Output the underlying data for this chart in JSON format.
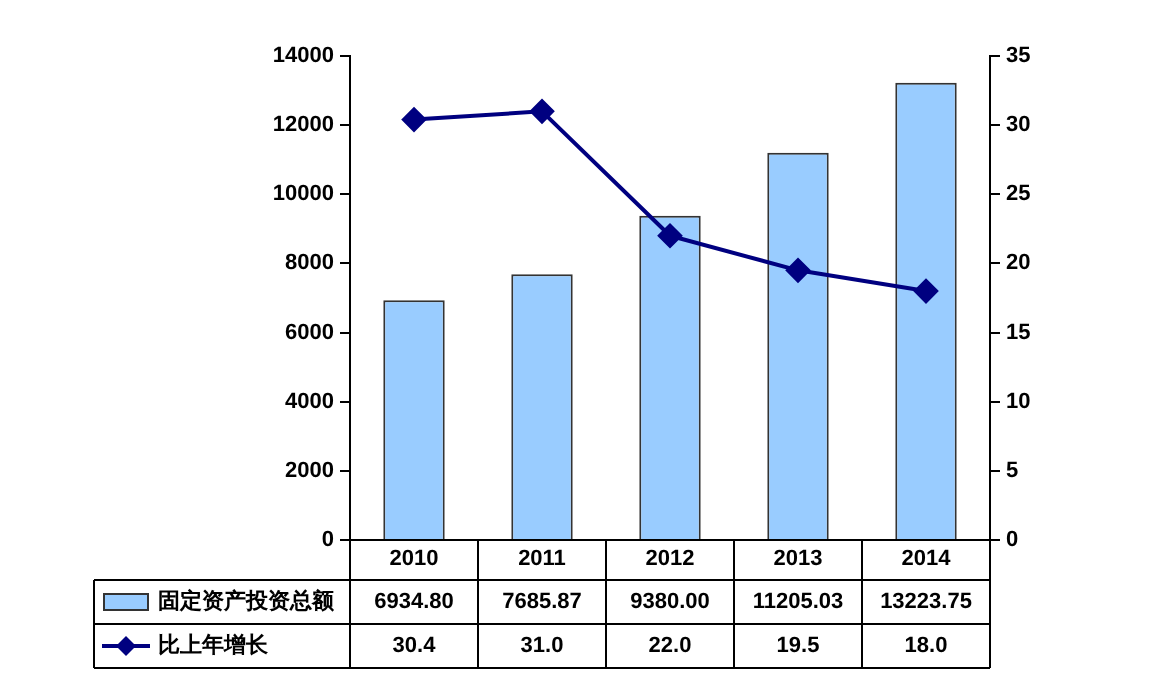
{
  "chart_data": {
    "type": "bar",
    "categories": [
      "2010",
      "2011",
      "2012",
      "2013",
      "2014"
    ],
    "series": [
      {
        "name": "固定资产投资总额",
        "color": "#99ccff",
        "values": [
          6934.8,
          7685.87,
          9380.0,
          11205.03,
          13223.75
        ],
        "value_labels": [
          "6934.80",
          "7685.87",
          "9380.00",
          "11205.03",
          "13223.75"
        ]
      },
      {
        "name": "比上年增长",
        "type": "line",
        "axis": "y2",
        "color": "#000080",
        "marker": "diamond",
        "values": [
          30.4,
          31.0,
          22.0,
          19.5,
          18.0
        ],
        "value_labels": [
          "30.4",
          "31.0",
          "22.0",
          "19.5",
          "18.0"
        ]
      }
    ],
    "ylim": [
      0,
      14000
    ],
    "yticks": [
      0,
      2000,
      4000,
      6000,
      8000,
      10000,
      12000,
      14000
    ],
    "y2lim": [
      0,
      35
    ],
    "y2ticks": [
      0,
      5,
      10,
      15,
      20,
      25,
      30,
      35
    ],
    "grid": false,
    "legend": "bottom"
  }
}
